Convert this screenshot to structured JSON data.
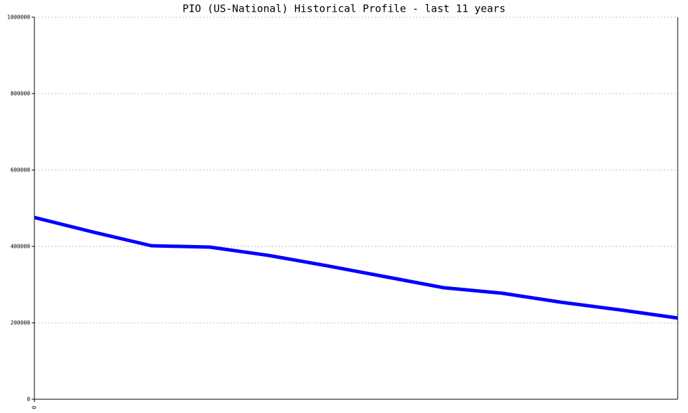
{
  "chart_data": {
    "type": "line",
    "title": "PIO (US-National) Historical Profile - last 11 years",
    "x": [
      0,
      1,
      2,
      3,
      4,
      5,
      6,
      7,
      8,
      9,
      10,
      11
    ],
    "series": [
      {
        "name": "PIO",
        "color": "#0000ff",
        "values": [
          475700,
          437800,
          401800,
          398200,
          376600,
          349500,
          320700,
          291900,
          277500,
          254000,
          234200,
          212600
        ]
      }
    ],
    "xlim": [
      0,
      11
    ],
    "xticks": [
      0
    ],
    "ylim": [
      0,
      1000000
    ],
    "yticks": [
      0,
      200000,
      400000,
      600000,
      800000,
      1000000
    ],
    "grid": true
  }
}
